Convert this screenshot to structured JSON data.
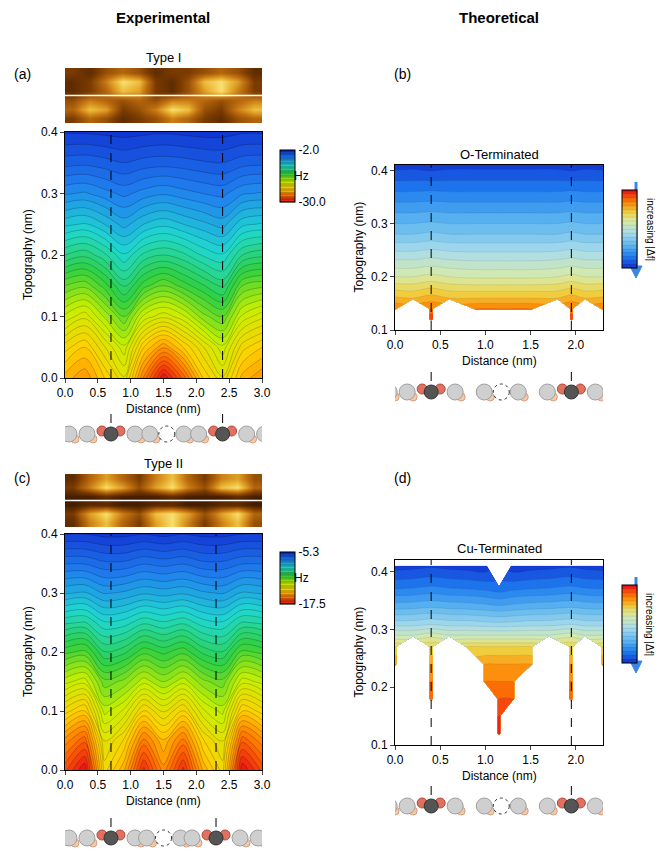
{
  "headers": [
    "Experimental",
    "Theoretical"
  ],
  "chart_data": [
    {
      "type": "contour",
      "label": "(a)",
      "title": "Type I",
      "x_label": "Distance (nm)",
      "y_label": "Topography (nm)",
      "x": [
        0,
        0.3,
        0.6,
        0.9,
        1.2,
        1.5,
        1.8,
        2.1,
        2.4,
        2.7,
        3.0
      ],
      "y": [
        0,
        0.05,
        0.1,
        0.15,
        0.2,
        0.25,
        0.3,
        0.35,
        0.4
      ],
      "z": [
        [
          -24,
          -25,
          -23,
          -21,
          -26,
          -30,
          -27,
          -23,
          -21,
          -24,
          -25
        ],
        [
          -22,
          -23,
          -21,
          -19,
          -23,
          -25,
          -23,
          -21,
          -19,
          -22,
          -23
        ],
        [
          -19,
          -20,
          -18,
          -16,
          -19,
          -20,
          -19,
          -17,
          -16,
          -19,
          -20
        ],
        [
          -16,
          -16.5,
          -15,
          -13,
          -15,
          -16,
          -15,
          -14,
          -13,
          -16,
          -16.5
        ],
        [
          -12.5,
          -13,
          -12,
          -10.5,
          -12,
          -12.5,
          -12,
          -11,
          -10.5,
          -12.5,
          -13
        ],
        [
          -9.5,
          -9.8,
          -9,
          -8,
          -9,
          -9.5,
          -9,
          -8.5,
          -8,
          -9.5,
          -9.8
        ],
        [
          -6.8,
          -7,
          -6.5,
          -6,
          -6.5,
          -6.8,
          -6.5,
          -6.2,
          -6,
          -6.8,
          -7
        ],
        [
          -4.5,
          -4.6,
          -4.4,
          -4.1,
          -4.4,
          -4.5,
          -4.4,
          -4.2,
          -4.1,
          -4.5,
          -4.6
        ],
        [
          -2.6,
          -2.6,
          -2.5,
          -2.4,
          -2.5,
          -2.6,
          -2.5,
          -2.4,
          -2.4,
          -2.6,
          -2.6
        ]
      ],
      "zlim": [
        -30,
        -2
      ],
      "zticks": [
        {
          "value": -2,
          "label": "-2.0"
        },
        {
          "value": -30,
          "label": "-30.0"
        }
      ],
      "colorbar_title": "Hz",
      "xlim": [
        0,
        3
      ],
      "xticks": [
        {
          "value": 0,
          "label": "0.0"
        },
        0.5,
        {
          "value": 1,
          "label": "1.0"
        },
        1.5,
        {
          "value": 2,
          "label": "2.0"
        },
        2.5,
        {
          "value": 3,
          "label": "3.0"
        }
      ],
      "ylim": [
        0,
        0.4
      ],
      "yticks": [
        {
          "value": 0,
          "label": "0.0"
        },
        0.1,
        0.2,
        0.3,
        0.4
      ],
      "dashed_lines": [
        0.7,
        2.4
      ],
      "image": {
        "zlim": [
          0,
          10
        ],
        "z": [
          [
            3,
            5,
            4,
            2,
            3,
            4,
            6,
            5,
            3,
            2,
            4,
            5
          ],
          [
            5,
            8,
            7,
            3,
            4,
            6,
            9,
            8,
            4,
            3,
            6,
            8
          ],
          [
            4,
            6,
            5,
            4,
            5,
            4,
            6,
            6,
            5,
            4,
            5,
            6
          ],
          [
            2,
            3,
            5,
            8,
            7,
            3,
            2,
            4,
            7,
            9,
            6,
            3
          ],
          [
            2,
            3,
            6,
            9,
            8,
            3,
            2,
            4,
            8,
            9,
            7,
            3
          ],
          [
            3,
            2,
            4,
            5,
            4,
            2,
            3,
            3,
            4,
            5,
            4,
            2
          ]
        ]
      }
    },
    {
      "type": "contour",
      "label": "(b)",
      "title": "O-Terminated",
      "x_label": "Distance (nm)",
      "y_label": "Topography (nm)",
      "x": [
        0,
        0.2,
        0.4,
        0.6,
        0.9,
        1.2,
        1.5,
        1.8,
        1.95,
        2.1,
        2.3
      ],
      "y": [
        0.1,
        0.12,
        0.14,
        0.16,
        0.2,
        0.24,
        0.28,
        0.32,
        0.36,
        0.41
      ],
      "z": [
        [
          null,
          null,
          null,
          null,
          null,
          null,
          null,
          null,
          null,
          null,
          null
        ],
        [
          null,
          null,
          19,
          null,
          null,
          null,
          null,
          null,
          19,
          null,
          null
        ],
        [
          17,
          null,
          17,
          null,
          17,
          17,
          17,
          null,
          17,
          null,
          17
        ],
        [
          15.2,
          15,
          15.5,
          15,
          15,
          15,
          15,
          15,
          15.5,
          15,
          15.2
        ],
        [
          12,
          12,
          12.3,
          12,
          11.8,
          11.8,
          11.8,
          12,
          12.3,
          12,
          12
        ],
        [
          9.5,
          9.5,
          9.7,
          9.5,
          9.4,
          9.4,
          9.4,
          9.5,
          9.7,
          9.5,
          9.5
        ],
        [
          7,
          7,
          7.2,
          7,
          7,
          7,
          7,
          7,
          7.2,
          7,
          7
        ],
        [
          5,
          5,
          5.1,
          5,
          5,
          5,
          5,
          5,
          5.1,
          5,
          5
        ],
        [
          3,
          3,
          3.1,
          3,
          3,
          3,
          3,
          3,
          3.1,
          3,
          3
        ],
        [
          0.5,
          0.6,
          0.4,
          0.6,
          0.6,
          0.6,
          0.6,
          0.6,
          0.4,
          0.6,
          0.5
        ]
      ],
      "zlim": [
        0,
        20
      ],
      "colorbar_title": "increasing |Δf|",
      "xlim": [
        0,
        2.3
      ],
      "xticks": [
        {
          "value": 0,
          "label": "0.0"
        },
        0.5,
        {
          "value": 1,
          "label": "1.0"
        },
        1.5,
        {
          "value": 2,
          "label": "2.0"
        }
      ],
      "ylim": [
        0.1,
        0.41
      ],
      "yticks": [
        0.1,
        0.2,
        0.3,
        0.4
      ],
      "dashed_lines": [
        0.4,
        1.95
      ]
    },
    {
      "type": "contour",
      "label": "(c)",
      "title": "Type II",
      "x_label": "Distance (nm)",
      "y_label": "Topography (nm)",
      "x": [
        0,
        0.3,
        0.6,
        0.9,
        1.2,
        1.5,
        1.8,
        2.1,
        2.4,
        2.7,
        3.0
      ],
      "y": [
        0,
        0.05,
        0.1,
        0.15,
        0.2,
        0.25,
        0.3,
        0.35,
        0.4
      ],
      "z": [
        [
          -16.5,
          -17.5,
          -14,
          -15,
          -17,
          -15.5,
          -17,
          -15,
          -14,
          -17.5,
          -16.5
        ],
        [
          -15.5,
          -16.2,
          -13.5,
          -14.2,
          -15.8,
          -14.8,
          -15.8,
          -14.2,
          -13.5,
          -16.2,
          -15.5
        ],
        [
          -14,
          -14.5,
          -12.5,
          -13,
          -14.2,
          -13.5,
          -14.2,
          -13,
          -12.5,
          -14.5,
          -14
        ],
        [
          -12.5,
          -12.8,
          -11.5,
          -11.8,
          -12.5,
          -12,
          -12.5,
          -11.8,
          -11.5,
          -12.8,
          -12.5
        ],
        [
          -11,
          -11.2,
          -10.2,
          -10.4,
          -11,
          -10.7,
          -11,
          -10.4,
          -10.2,
          -11.2,
          -11
        ],
        [
          -9.5,
          -9.6,
          -9,
          -9.1,
          -9.5,
          -9.3,
          -9.5,
          -9.1,
          -9,
          -9.6,
          -9.5
        ],
        [
          -8,
          -8.1,
          -7.7,
          -7.8,
          -8,
          -7.9,
          -8,
          -7.8,
          -7.7,
          -8.1,
          -8
        ],
        [
          -6.8,
          -6.8,
          -6.6,
          -6.6,
          -6.8,
          -6.7,
          -6.8,
          -6.6,
          -6.6,
          -6.8,
          -6.8
        ],
        [
          -5.6,
          -5.6,
          -5.5,
          -5.5,
          -5.6,
          -5.5,
          -5.6,
          -5.5,
          -5.5,
          -5.6,
          -5.6
        ]
      ],
      "zlim": [
        -17.5,
        -5.3
      ],
      "zticks": [
        -5.3,
        -17.5
      ],
      "colorbar_title": "Hz",
      "xlim": [
        0,
        3
      ],
      "xticks": [
        {
          "value": 0,
          "label": "0.0"
        },
        0.5,
        {
          "value": 1,
          "label": "1.0"
        },
        1.5,
        {
          "value": 2,
          "label": "2.0"
        },
        2.5,
        {
          "value": 3,
          "label": "3.0"
        }
      ],
      "ylim": [
        0,
        0.4
      ],
      "yticks": [
        {
          "value": 0,
          "label": "0.0"
        },
        0.1,
        0.2,
        0.3,
        0.4
      ],
      "dashed_lines": [
        0.7,
        2.3
      ],
      "image": {
        "zlim": [
          0,
          10
        ],
        "z": [
          [
            2,
            6,
            8,
            5,
            3,
            7,
            9,
            6,
            3,
            6,
            8,
            4
          ],
          [
            3,
            7,
            9,
            6,
            4,
            8,
            9,
            7,
            4,
            7,
            9,
            5
          ],
          [
            1,
            2,
            2,
            1,
            1,
            2,
            2,
            1,
            1,
            2,
            2,
            1
          ],
          [
            1,
            1,
            2,
            1,
            1,
            1,
            2,
            1,
            1,
            1,
            2,
            1
          ],
          [
            3,
            6,
            9,
            7,
            4,
            7,
            9,
            6,
            4,
            8,
            9,
            5
          ],
          [
            2,
            5,
            7,
            5,
            3,
            6,
            8,
            5,
            3,
            6,
            7,
            4
          ]
        ]
      }
    },
    {
      "type": "contour",
      "label": "(d)",
      "title": "Cu-Terminated",
      "x_label": "Distance (nm)",
      "y_label": "Topography (nm)",
      "x": [
        0,
        0.2,
        0.4,
        0.6,
        0.8,
        1.0,
        1.15,
        1.3,
        1.5,
        1.7,
        1.95,
        2.1,
        2.3
      ],
      "y": [
        0.1,
        0.12,
        0.15,
        0.18,
        0.21,
        0.24,
        0.27,
        0.29,
        0.31,
        0.34,
        0.37,
        0.41
      ],
      "z": [
        [
          null,
          null,
          null,
          null,
          null,
          null,
          null,
          null,
          null,
          null,
          null,
          null,
          null
        ],
        [
          null,
          null,
          null,
          null,
          null,
          null,
          20,
          null,
          null,
          null,
          null,
          null,
          null
        ],
        [
          null,
          null,
          null,
          null,
          null,
          null,
          19,
          null,
          null,
          null,
          null,
          null,
          null
        ],
        [
          null,
          null,
          18,
          null,
          null,
          null,
          18,
          18,
          null,
          null,
          18,
          null,
          null
        ],
        [
          null,
          null,
          17,
          null,
          null,
          17,
          17,
          17,
          null,
          null,
          17,
          null,
          null
        ],
        [
          16,
          null,
          16,
          null,
          null,
          16,
          16,
          16,
          16,
          null,
          16,
          null,
          16
        ],
        [
          14,
          null,
          14,
          null,
          14,
          14,
          14,
          14,
          14,
          null,
          14,
          null,
          14
        ],
        [
          11,
          11,
          11.5,
          11,
          11,
          11,
          11,
          11,
          11,
          11,
          11.5,
          11,
          11
        ],
        [
          8.5,
          8.5,
          8.8,
          8.5,
          8.5,
          8.3,
          8.2,
          8.3,
          8.5,
          8.5,
          8.8,
          8.5,
          8.5
        ],
        [
          5.5,
          5.6,
          5.8,
          5.6,
          5.5,
          5.3,
          5.1,
          5.3,
          5.5,
          5.6,
          5.8,
          5.6,
          5.5
        ],
        [
          3,
          3.1,
          3.3,
          3.1,
          3,
          2.8,
          2.5,
          2.8,
          3,
          3.1,
          3.3,
          3.1,
          3
        ],
        [
          0.5,
          0.6,
          0.8,
          0.6,
          0.5,
          0.3,
          null,
          0.3,
          0.5,
          0.6,
          0.8,
          0.6,
          0.5
        ]
      ],
      "zlim": [
        0,
        20
      ],
      "colorbar_title": "increasing |Δf|",
      "xlim": [
        0,
        2.3
      ],
      "xticks": [
        {
          "value": 0,
          "label": "0.0"
        },
        0.5,
        {
          "value": 1,
          "label": "1.0"
        },
        1.5,
        {
          "value": 2,
          "label": "2.0"
        }
      ],
      "ylim": [
        0.1,
        0.42
      ],
      "yticks": [
        0.1,
        0.2,
        0.3,
        0.4
      ],
      "dashed_lines": [
        0.4,
        1.95
      ]
    }
  ]
}
